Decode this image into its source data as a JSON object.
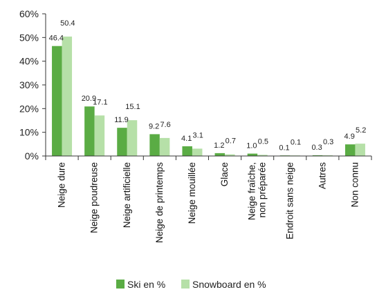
{
  "chart_data": {
    "type": "bar",
    "categories": [
      [
        "Neige dure"
      ],
      [
        "Neige poudreuse"
      ],
      [
        "Neige artificielle"
      ],
      [
        "Neige de printemps"
      ],
      [
        "Neige mouillée"
      ],
      [
        "Glace"
      ],
      [
        "Neige fraîche,",
        "non préparée"
      ],
      [
        "Endroit sans neige"
      ],
      [
        "Autres"
      ],
      [
        "Non connu"
      ]
    ],
    "series": [
      {
        "name": "Ski en %",
        "color": "#5aac44",
        "values": [
          46.4,
          20.9,
          11.9,
          9.2,
          4.1,
          1.2,
          1.0,
          0.1,
          0.3,
          4.9
        ],
        "labels": [
          "46.4",
          "20.9",
          "11.9",
          "9.2",
          "4.1",
          "1.2",
          "1.0",
          "0.1",
          "0.3",
          "4.9"
        ]
      },
      {
        "name": "Snowboard en %",
        "color": "#b6e0a8",
        "values": [
          50.4,
          17.1,
          15.1,
          7.6,
          3.1,
          0.7,
          0.5,
          0.1,
          0.3,
          5.2
        ],
        "labels": [
          "50.4",
          "17.1",
          "15.1",
          "7.6",
          "3.1",
          "0.7",
          "0.5",
          "0.1",
          "0.3",
          "5.2"
        ]
      }
    ],
    "ylim": [
      0,
      60
    ],
    "yticks": [
      {
        "value": 0,
        "label": "0%"
      },
      {
        "value": 10,
        "label": "10%"
      },
      {
        "value": 20,
        "label": "20%"
      },
      {
        "value": 30,
        "label": "30%"
      },
      {
        "value": 40,
        "label": "40%"
      },
      {
        "value": 50,
        "label": "50%"
      },
      {
        "value": 60,
        "label": "60%"
      }
    ],
    "grid": false,
    "legend_position": "bottom"
  }
}
